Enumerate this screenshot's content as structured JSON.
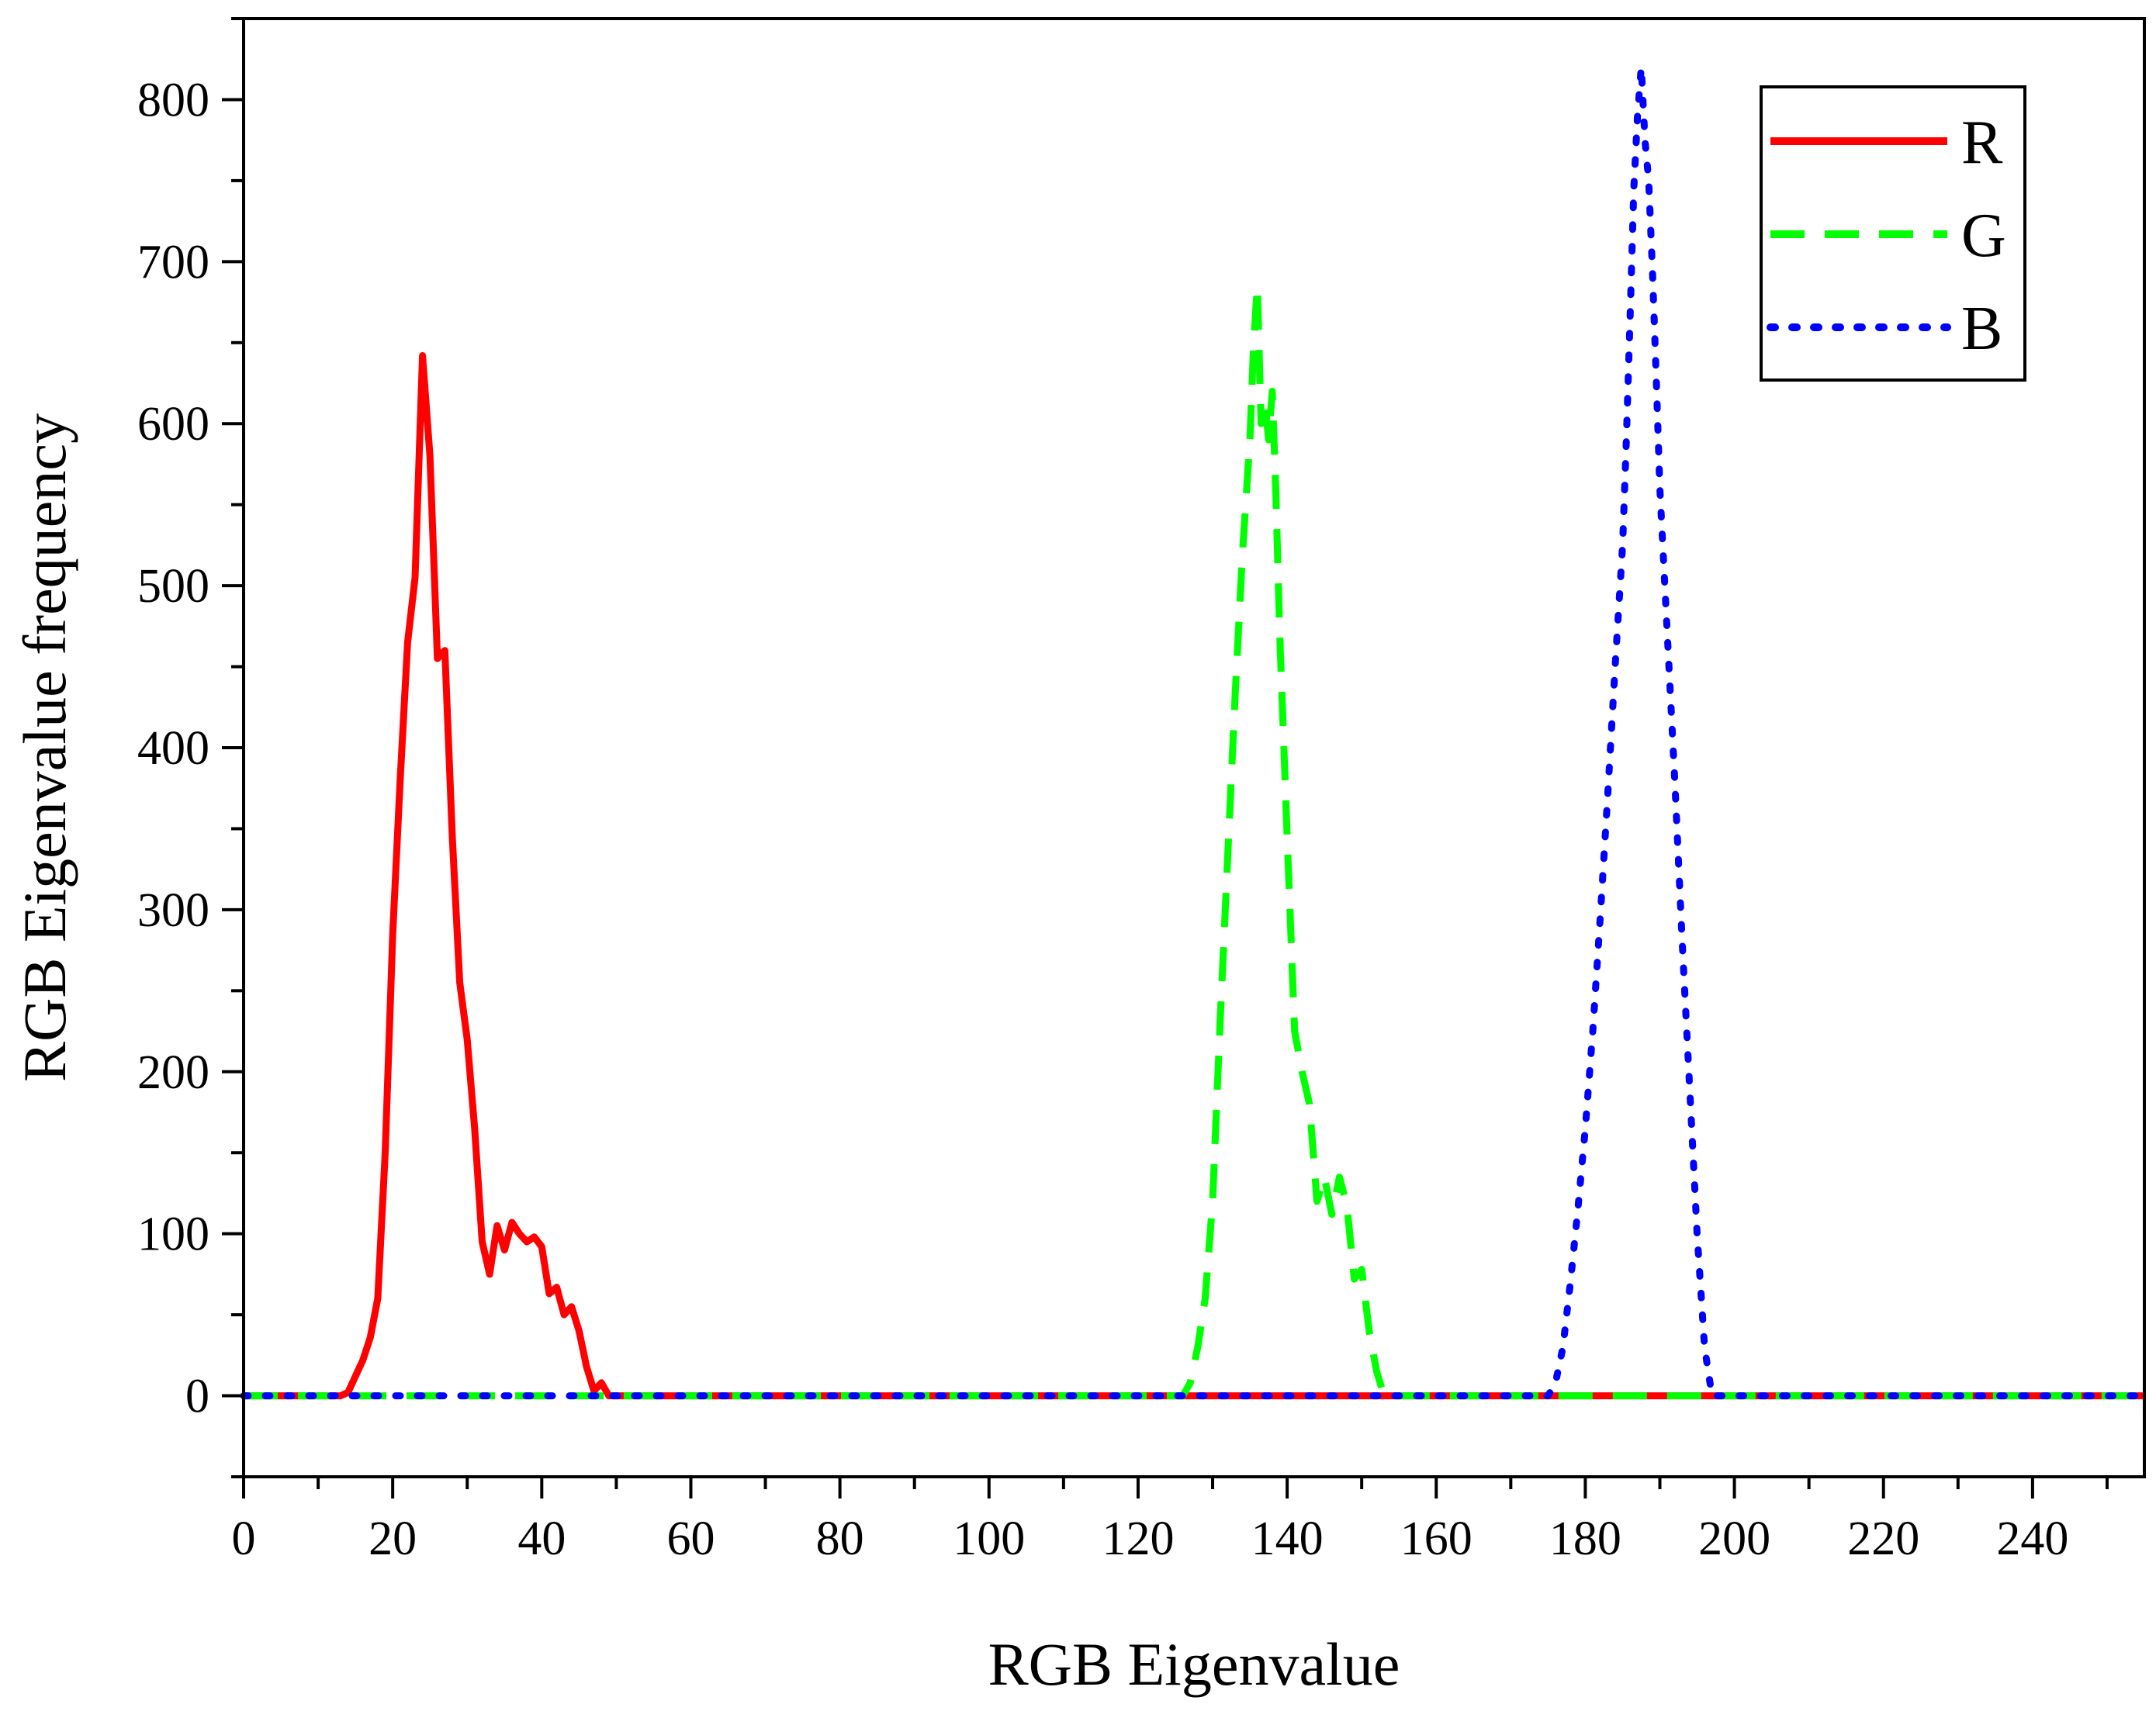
{
  "chart_data": {
    "type": "line",
    "title": "",
    "xlabel": "RGB Eigenvalue",
    "ylabel": "RGB Eigenvalue frequency",
    "xlim": [
      0,
      255
    ],
    "ylim": [
      -50,
      850
    ],
    "x_ticks": [
      0,
      20,
      40,
      60,
      80,
      100,
      120,
      140,
      160,
      180,
      200,
      220,
      240
    ],
    "x_tick_labels": [
      "0",
      "20",
      "40",
      "60",
      "80",
      "100",
      "120",
      "140",
      "160",
      "180",
      "200",
      "220",
      "240"
    ],
    "y_ticks": [
      0,
      100,
      200,
      300,
      400,
      500,
      600,
      700,
      800
    ],
    "y_tick_labels": [
      "0",
      "100",
      "200",
      "300",
      "400",
      "500",
      "600",
      "700",
      "800"
    ],
    "grid": false,
    "legend_position": "top-right",
    "series": [
      {
        "name": "R",
        "color": "#ff0000",
        "style": "solid",
        "points": [
          [
            0,
            0
          ],
          [
            13,
            0
          ],
          [
            14,
            2
          ],
          [
            15,
            12
          ],
          [
            16,
            22
          ],
          [
            17,
            36
          ],
          [
            18,
            60
          ],
          [
            19,
            150
          ],
          [
            20,
            285
          ],
          [
            21,
            380
          ],
          [
            22,
            465
          ],
          [
            23,
            505
          ],
          [
            24,
            642
          ],
          [
            25,
            580
          ],
          [
            26,
            455
          ],
          [
            27,
            460
          ],
          [
            28,
            345
          ],
          [
            29,
            255
          ],
          [
            30,
            220
          ],
          [
            31,
            165
          ],
          [
            32,
            95
          ],
          [
            33,
            75
          ],
          [
            34,
            105
          ],
          [
            35,
            90
          ],
          [
            36,
            107
          ],
          [
            37,
            100
          ],
          [
            38,
            95
          ],
          [
            39,
            98
          ],
          [
            40,
            92
          ],
          [
            41,
            63
          ],
          [
            42,
            67
          ],
          [
            43,
            50
          ],
          [
            44,
            55
          ],
          [
            45,
            40
          ],
          [
            46,
            18
          ],
          [
            47,
            3
          ],
          [
            48,
            8
          ],
          [
            49,
            0
          ],
          [
            50,
            0
          ],
          [
            255,
            0
          ]
        ]
      },
      {
        "name": "G",
        "color": "#00ff00",
        "style": "dashed",
        "points": [
          [
            0,
            0
          ],
          [
            126,
            0
          ],
          [
            127,
            8
          ],
          [
            128,
            30
          ],
          [
            129,
            60
          ],
          [
            130,
            120
          ],
          [
            131,
            230
          ],
          [
            132,
            330
          ],
          [
            133,
            430
          ],
          [
            134,
            520
          ],
          [
            135,
            590
          ],
          [
            135.5,
            650
          ],
          [
            136,
            685
          ],
          [
            136.5,
            600
          ],
          [
            137,
            615
          ],
          [
            137.5,
            590
          ],
          [
            138,
            620
          ],
          [
            138.5,
            555
          ],
          [
            139,
            470
          ],
          [
            140,
            345
          ],
          [
            141,
            225
          ],
          [
            142,
            200
          ],
          [
            143,
            180
          ],
          [
            144,
            120
          ],
          [
            145,
            135
          ],
          [
            146,
            112
          ],
          [
            147,
            135
          ],
          [
            148,
            118
          ],
          [
            149,
            72
          ],
          [
            150,
            78
          ],
          [
            151,
            40
          ],
          [
            152,
            15
          ],
          [
            153,
            0
          ],
          [
            255,
            0
          ]
        ]
      },
      {
        "name": "B",
        "color": "#0000ff",
        "style": "dotted",
        "points": [
          [
            0,
            0
          ],
          [
            175,
            0
          ],
          [
            176,
            8
          ],
          [
            177,
            30
          ],
          [
            178,
            70
          ],
          [
            179,
            115
          ],
          [
            180,
            165
          ],
          [
            181,
            225
          ],
          [
            182,
            295
          ],
          [
            183,
            370
          ],
          [
            184,
            450
          ],
          [
            185,
            525
          ],
          [
            185.5,
            590
          ],
          [
            186,
            665
          ],
          [
            186.5,
            745
          ],
          [
            187,
            790
          ],
          [
            187.5,
            820
          ],
          [
            188,
            775
          ],
          [
            188.5,
            750
          ],
          [
            189,
            695
          ],
          [
            189.5,
            630
          ],
          [
            190,
            560
          ],
          [
            191,
            470
          ],
          [
            192,
            380
          ],
          [
            193,
            280
          ],
          [
            194,
            190
          ],
          [
            195,
            100
          ],
          [
            196,
            30
          ],
          [
            197,
            0
          ],
          [
            255,
            0
          ]
        ]
      }
    ]
  }
}
